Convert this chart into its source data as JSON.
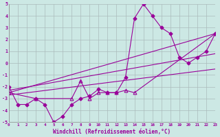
{
  "xlabel": "Windchill (Refroidissement éolien,°C)",
  "background_color": "#cce8e4",
  "grid_color": "#aabbbb",
  "line_color": "#990099",
  "xmin": 0,
  "xmax": 23,
  "ymin": -5,
  "ymax": 5,
  "series": [
    {
      "x": [
        0,
        1,
        2,
        3,
        4,
        5,
        6,
        7,
        8,
        9,
        10,
        11,
        12,
        13,
        14,
        15,
        16,
        17,
        18,
        19,
        20,
        21,
        22,
        23
      ],
      "y": [
        -2.0,
        -3.5,
        -3.5,
        -3.0,
        -3.5,
        -5.0,
        -4.5,
        -3.5,
        -3.0,
        -2.8,
        -2.2,
        -2.5,
        -2.5,
        -1.2,
        3.8,
        5.0,
        4.0,
        3.0,
        2.5,
        0.5,
        0.0,
        0.5,
        1.0,
        2.5
      ],
      "marker": "D",
      "markersize": 2.5
    },
    {
      "x": [
        0,
        3,
        7,
        8,
        9,
        10,
        11,
        12,
        13,
        14,
        23
      ],
      "y": [
        -2.5,
        -3.0,
        -3.0,
        -1.5,
        -3.0,
        -2.5,
        -2.5,
        -2.5,
        -2.3,
        -2.5,
        2.5
      ],
      "marker": "^",
      "markersize": 3.5
    },
    {
      "x": [
        0,
        23
      ],
      "y": [
        -2.5,
        2.5
      ],
      "marker": null,
      "markersize": 0
    },
    {
      "x": [
        0,
        23
      ],
      "y": [
        -2.3,
        0.8
      ],
      "marker": null,
      "markersize": 0
    },
    {
      "x": [
        0,
        23
      ],
      "y": [
        -2.7,
        -0.5
      ],
      "marker": null,
      "markersize": 0
    }
  ]
}
